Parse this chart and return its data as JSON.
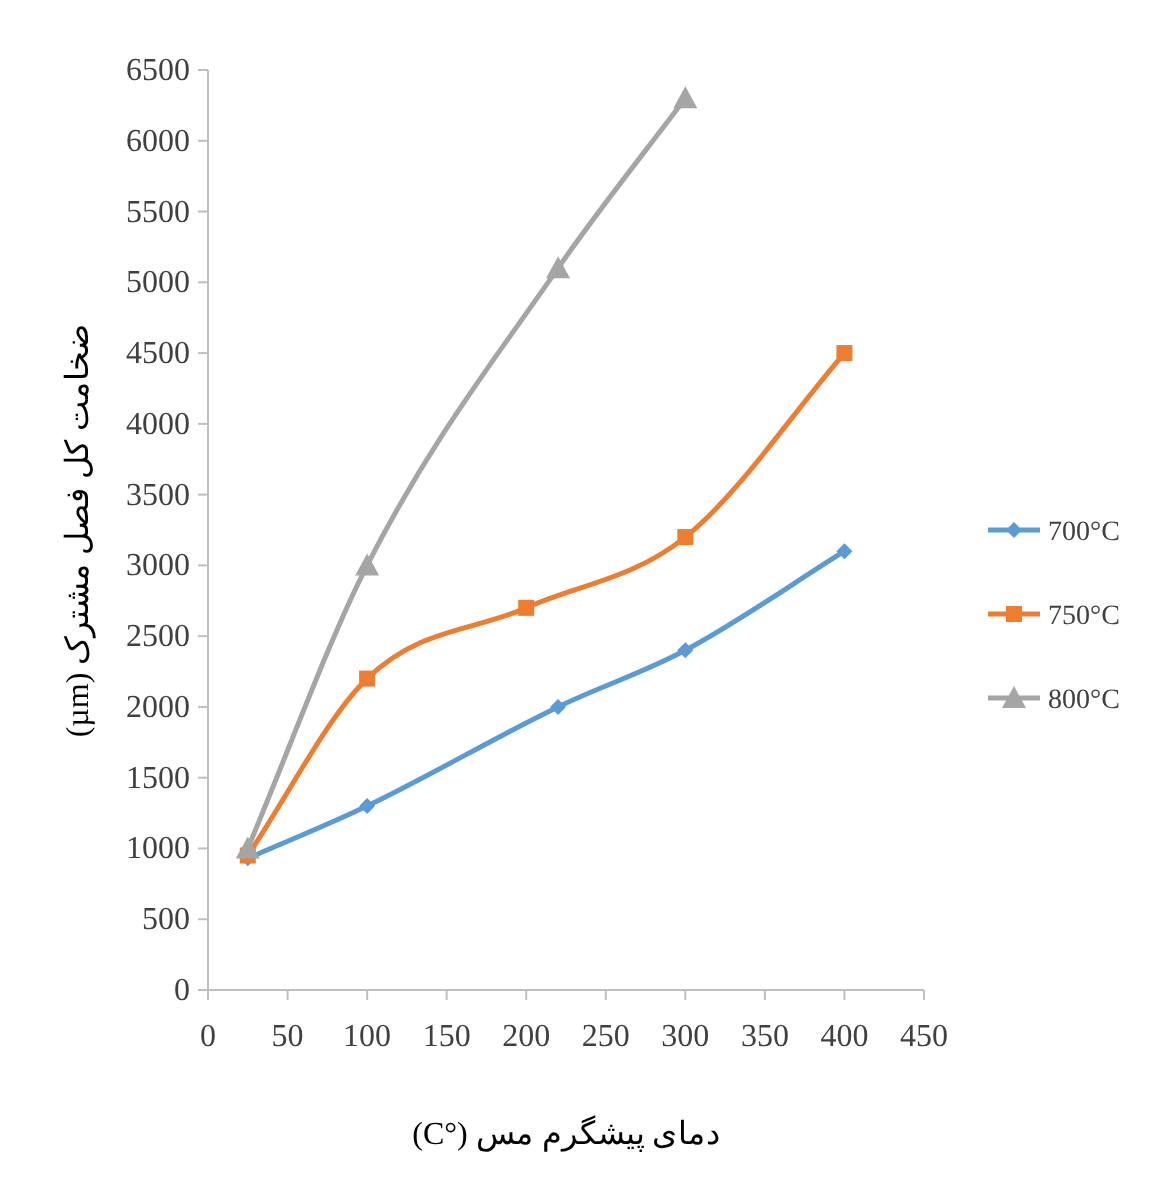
{
  "chart_data": {
    "type": "line",
    "xlabel": "دمای پیشگرم مس (°C)",
    "ylabel": "ضخامت کل فصل مشترک (µm)",
    "xlim": [
      0,
      450
    ],
    "xticks": [
      0,
      50,
      100,
      150,
      200,
      250,
      300,
      350,
      400,
      450
    ],
    "ylim": [
      0,
      6500
    ],
    "yticks": [
      0,
      500,
      1000,
      1500,
      2000,
      2500,
      3000,
      3500,
      4000,
      4500,
      5000,
      5500,
      6000,
      6500
    ],
    "grid": false,
    "legend": "right",
    "line_style": "solid",
    "series": [
      {
        "name": "700°C",
        "color": "#5b9bd5",
        "marker": "diamond",
        "x": [
          25,
          100,
          220,
          300,
          400
        ],
        "values": [
          930,
          1300,
          2000,
          2400,
          3100
        ]
      },
      {
        "name": "750°C",
        "color": "#ed7d31",
        "marker": "square",
        "x": [
          25,
          100,
          200,
          300,
          400
        ],
        "values": [
          950,
          2200,
          2700,
          3200,
          4500
        ]
      },
      {
        "name": "800°C",
        "color": "#a5a5a5",
        "marker": "triangle",
        "x": [
          25,
          100,
          220,
          300
        ],
        "values": [
          1000,
          3000,
          5100,
          6300
        ]
      }
    ]
  }
}
